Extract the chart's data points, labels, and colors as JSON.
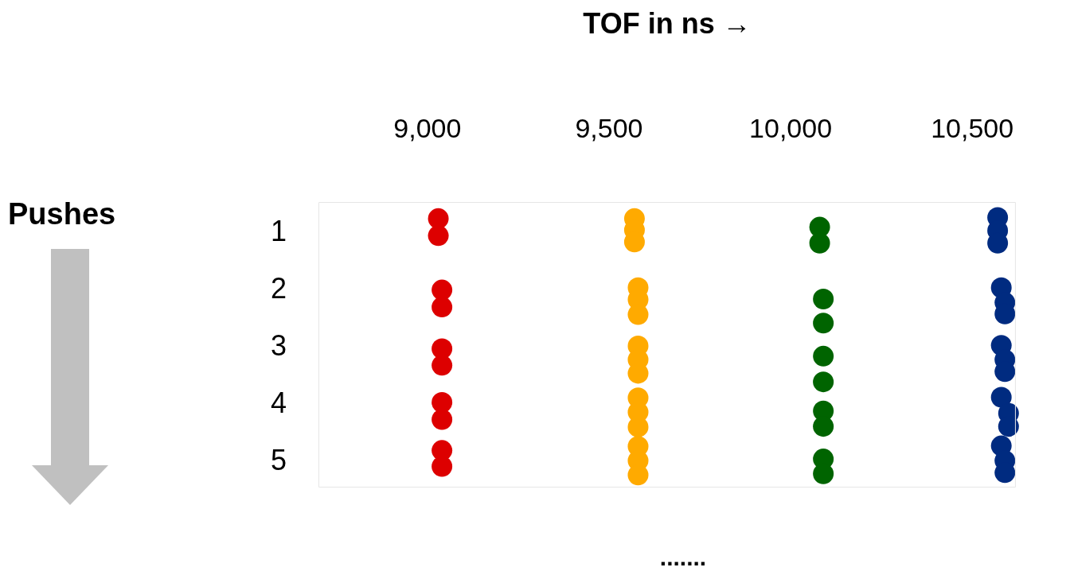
{
  "chart_data": {
    "type": "scatter",
    "xlabel": "TOF in ns →",
    "xlim": [
      8700,
      10620
    ],
    "xticks": [
      {
        "value": 9000,
        "label": "9,000"
      },
      {
        "value": 9500,
        "label": "9,500"
      },
      {
        "value": 10000,
        "label": "10,000"
      },
      {
        "value": 10500,
        "label": "10,500"
      }
    ],
    "ylim": [
      5.45,
      0.45
    ],
    "yticks": [
      1,
      2,
      3,
      4,
      5
    ],
    "grid": false,
    "legend": false,
    "marker": "circle",
    "annotations": [
      "Pushes",
      "......."
    ],
    "series": [
      {
        "color": "#dd0000",
        "x": [
          9030,
          9030,
          9040,
          9040,
          9040,
          9040,
          9040,
          9040,
          9040,
          9040
        ],
        "values": [
          0.74,
          1.04,
          1.99,
          2.29,
          3.02,
          3.31,
          3.96,
          4.26,
          4.8,
          5.08
        ]
      },
      {
        "color": "#ffaa00",
        "x": [
          9570,
          9570,
          9570,
          9580,
          9580,
          9580,
          9580,
          9580,
          9580,
          9580,
          9580,
          9580,
          9580,
          9580,
          9580
        ],
        "values": [
          0.74,
          0.94,
          1.15,
          1.95,
          2.16,
          2.42,
          2.97,
          3.21,
          3.45,
          3.88,
          4.13,
          4.39,
          4.73,
          4.98,
          5.23
        ]
      },
      {
        "color": "#006400",
        "x": [
          10080,
          10080,
          10090,
          10090,
          10090,
          10090,
          10090,
          10090,
          10090,
          10090
        ],
        "values": [
          0.89,
          1.17,
          2.15,
          2.57,
          3.15,
          3.6,
          4.11,
          4.38,
          4.95,
          5.21
        ]
      },
      {
        "color": "#002b80",
        "x": [
          10570,
          10570,
          10570,
          10580,
          10590,
          10590,
          10580,
          10590,
          10590,
          10580,
          10600,
          10600,
          10580,
          10590,
          10590
        ],
        "values": [
          0.72,
          0.95,
          1.17,
          1.95,
          2.21,
          2.41,
          2.96,
          3.21,
          3.42,
          3.87,
          4.15,
          4.38,
          4.72,
          4.98,
          5.19
        ]
      }
    ]
  }
}
